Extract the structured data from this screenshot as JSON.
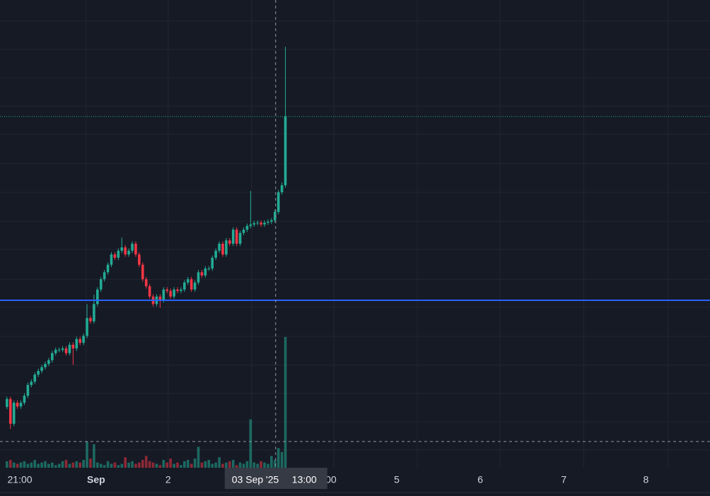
{
  "chart_data": {
    "type": "candlestick",
    "open": [
      13.0,
      14.7,
      9.4,
      13.9,
      13.1,
      13.9,
      15.4,
      17.7,
      18.4,
      19.9,
      20.7,
      21.5,
      22.2,
      23.0,
      24.5,
      25.2,
      25.2,
      25.5,
      24.5,
      26.3,
      25.5,
      27.5,
      26.7,
      28.2,
      32.0,
      31.3,
      35.0,
      38.1,
      40.3,
      41.8,
      43.4,
      45.6,
      44.9,
      46.4,
      47.1,
      45.6,
      46.4,
      47.9,
      45.6,
      43.4,
      40.3,
      38.8,
      36.6,
      35.0,
      36.6,
      35.8,
      38.1,
      37.8,
      36.6,
      38.1,
      37.8,
      38.1,
      39.6,
      40.3,
      38.1,
      39.6,
      41.8,
      41.1,
      42.6,
      42.6,
      44.9,
      46.4,
      47.9,
      45.6,
      48.6,
      47.9,
      50.9,
      47.9,
      50.2,
      50.9,
      51.7,
      52.0,
      52.3,
      52.4,
      52.0,
      52.4,
      52.6,
      52.9,
      54.7,
      58.9,
      60.4
    ],
    "high": [
      15.2,
      15.2,
      14.4,
      14.4,
      14.4,
      15.9,
      18.2,
      18.9,
      20.4,
      21.2,
      22.0,
      22.7,
      23.5,
      25.0,
      25.7,
      25.7,
      26.0,
      26.0,
      26.8,
      26.8,
      28.0,
      28.0,
      28.7,
      35.0,
      32.5,
      37.0,
      38.6,
      40.8,
      42.3,
      43.9,
      46.1,
      46.1,
      46.9,
      49.2,
      47.6,
      46.9,
      48.4,
      48.4,
      46.1,
      43.9,
      40.8,
      39.3,
      37.1,
      37.1,
      37.1,
      38.6,
      38.6,
      38.3,
      38.6,
      38.6,
      38.6,
      40.1,
      40.8,
      40.8,
      40.1,
      42.3,
      42.3,
      43.1,
      43.1,
      45.4,
      46.9,
      48.4,
      48.4,
      49.1,
      49.1,
      51.4,
      51.4,
      50.7,
      51.4,
      52.2,
      59.2,
      52.8,
      52.9,
      52.9,
      52.9,
      53.1,
      53.4,
      55.2,
      59.4,
      61.0,
      90.0
    ],
    "low": [
      12.5,
      8.3,
      8.9,
      12.6,
      12.6,
      13.4,
      14.9,
      17.2,
      17.9,
      19.4,
      20.2,
      21.0,
      21.7,
      22.5,
      24.0,
      24.7,
      24.7,
      24.0,
      24.0,
      22.0,
      25.0,
      26.2,
      26.2,
      27.7,
      30.8,
      30.8,
      34.5,
      37.6,
      39.8,
      41.3,
      42.9,
      44.4,
      44.4,
      45.9,
      45.1,
      45.1,
      45.9,
      45.1,
      42.9,
      39.8,
      38.3,
      36.1,
      34.5,
      34.5,
      34.2,
      35.3,
      37.3,
      36.1,
      36.1,
      37.3,
      37.3,
      37.6,
      39.1,
      37.6,
      37.6,
      39.1,
      40.6,
      40.6,
      42.1,
      42.1,
      44.4,
      45.9,
      45.1,
      45.1,
      47.4,
      47.4,
      47.4,
      47.4,
      49.7,
      50.4,
      51.2,
      51.5,
      51.8,
      51.5,
      51.5,
      51.9,
      52.1,
      52.4,
      54.2,
      58.4,
      59.9
    ],
    "close": [
      14.7,
      9.4,
      13.9,
      13.1,
      13.9,
      15.4,
      17.7,
      18.4,
      19.9,
      20.7,
      21.5,
      22.2,
      23.0,
      24.5,
      25.2,
      25.2,
      25.5,
      24.5,
      26.3,
      25.5,
      27.5,
      26.7,
      28.2,
      32.0,
      31.3,
      35.0,
      38.1,
      40.3,
      41.8,
      43.4,
      45.6,
      44.9,
      46.4,
      47.1,
      45.6,
      46.4,
      47.9,
      45.6,
      43.4,
      40.3,
      38.8,
      36.6,
      35.0,
      36.6,
      35.8,
      38.1,
      37.8,
      36.6,
      38.1,
      37.8,
      38.1,
      39.6,
      40.3,
      38.1,
      39.6,
      41.8,
      41.1,
      42.6,
      42.6,
      44.9,
      46.4,
      47.9,
      45.6,
      48.6,
      47.9,
      50.9,
      47.9,
      50.2,
      50.9,
      51.7,
      52.0,
      52.3,
      52.4,
      52.0,
      52.4,
      52.6,
      52.9,
      54.7,
      58.9,
      60.4,
      75.1
    ],
    "volume": [
      5,
      6,
      4,
      3,
      4,
      5,
      3,
      4,
      6,
      3,
      4,
      5,
      3,
      4,
      2,
      3,
      5,
      6,
      3,
      4,
      5,
      4,
      6,
      20,
      7,
      18,
      4,
      3,
      2,
      5,
      3,
      4,
      2,
      3,
      8,
      4,
      5,
      3,
      4,
      6,
      9,
      5,
      4,
      3,
      2,
      6,
      4,
      7,
      3,
      4,
      2,
      5,
      6,
      3,
      7,
      16,
      4,
      5,
      6,
      3,
      4,
      8,
      3,
      4,
      5,
      6,
      2,
      4,
      3,
      5,
      37,
      4,
      3,
      5,
      4,
      3,
      9,
      6,
      15,
      12,
      100
    ],
    "up_color": "#22ab94",
    "down_color": "#f23645",
    "xlim": [
      -2,
      202
    ],
    "ylim": [
      0,
      100
    ],
    "volume_ylim": [
      0,
      100
    ],
    "xticks": [
      {
        "value": 3.7,
        "label": "21:00"
      },
      {
        "value": 25.6,
        "label": "Sep"
      },
      {
        "value": 46.3,
        "label": "2"
      },
      {
        "value": 93.1,
        "label": "00"
      },
      {
        "value": 112,
        "label": "5"
      },
      {
        "value": 136,
        "label": "6"
      },
      {
        "value": 160,
        "label": "7"
      },
      {
        "value": 183.6,
        "label": "8"
      }
    ],
    "grid_x": [
      22.8,
      46.3,
      70.3,
      93.9,
      117.9,
      141.7,
      165.7,
      190.0
    ],
    "grid_y": [
      3.8,
      9.8,
      15.9,
      21.9,
      28.1,
      34.3,
      40.3,
      46.7,
      52.7,
      58.9,
      65.0,
      71.3,
      77.3,
      83.4,
      89.4,
      95.5
    ],
    "hline": {
      "value": 35.8,
      "color": "#2962ff"
    },
    "crosshair": {
      "x": 77.2,
      "y": 5.6,
      "date": "03 Sep '25",
      "time": "13:00"
    }
  }
}
